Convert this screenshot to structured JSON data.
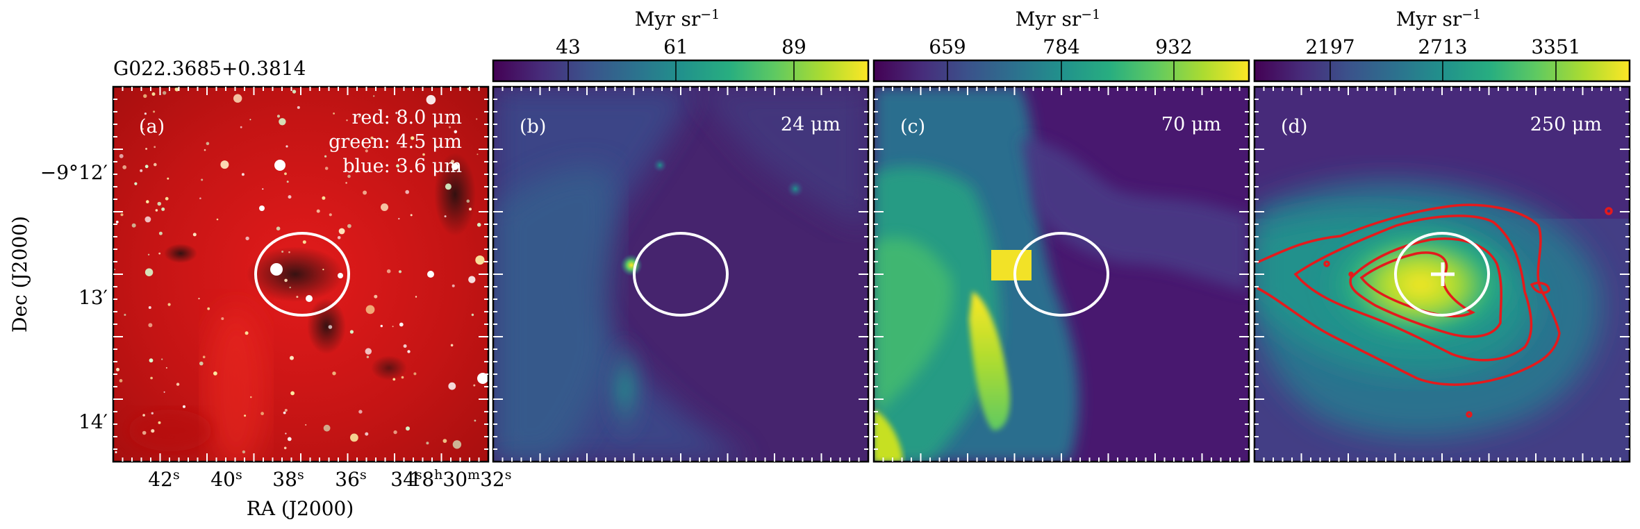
{
  "figure": {
    "field_name": "G022.3685+0.3814",
    "axes": {
      "x_label": "RA (J2000)",
      "y_label": "Dec (J2000)",
      "x_ticks": [
        "42",
        "40",
        "38",
        "36",
        "34",
        "32"
      ],
      "x_tick_unit": "s",
      "x_tick_34_prefix": "34",
      "x_tick_32_prefix": "18",
      "x_tick_hour_sup": "h",
      "x_tick_30": "30",
      "x_tick_min_sup": "m",
      "y_ticks": [
        "−9°12′",
        "13′",
        "14′"
      ]
    },
    "colorbar_unit": "Myr sr",
    "colorbar_unit_exp": "−1",
    "panels": [
      {
        "id": "a",
        "tag": "(a)",
        "legend": [
          "red: 8.0 μm",
          "green: 4.5 μm",
          "blue: 3.6 μm"
        ],
        "colorbar_ticks": []
      },
      {
        "id": "b",
        "tag": "(b)",
        "band": "24 μm",
        "colorbar_ticks": [
          "43",
          "61",
          "89"
        ]
      },
      {
        "id": "c",
        "tag": "(c)",
        "band": "70 μm",
        "colorbar_ticks": [
          "659",
          "784",
          "932"
        ]
      },
      {
        "id": "d",
        "tag": "(d)",
        "band": "250 μm",
        "colorbar_ticks": [
          "2197",
          "2713",
          "3351"
        ]
      }
    ]
  },
  "colors": {
    "ellipse": "#ffffff",
    "contour": "#e41a1c",
    "viridis_low": "#440154",
    "viridis_high": "#fde725"
  }
}
